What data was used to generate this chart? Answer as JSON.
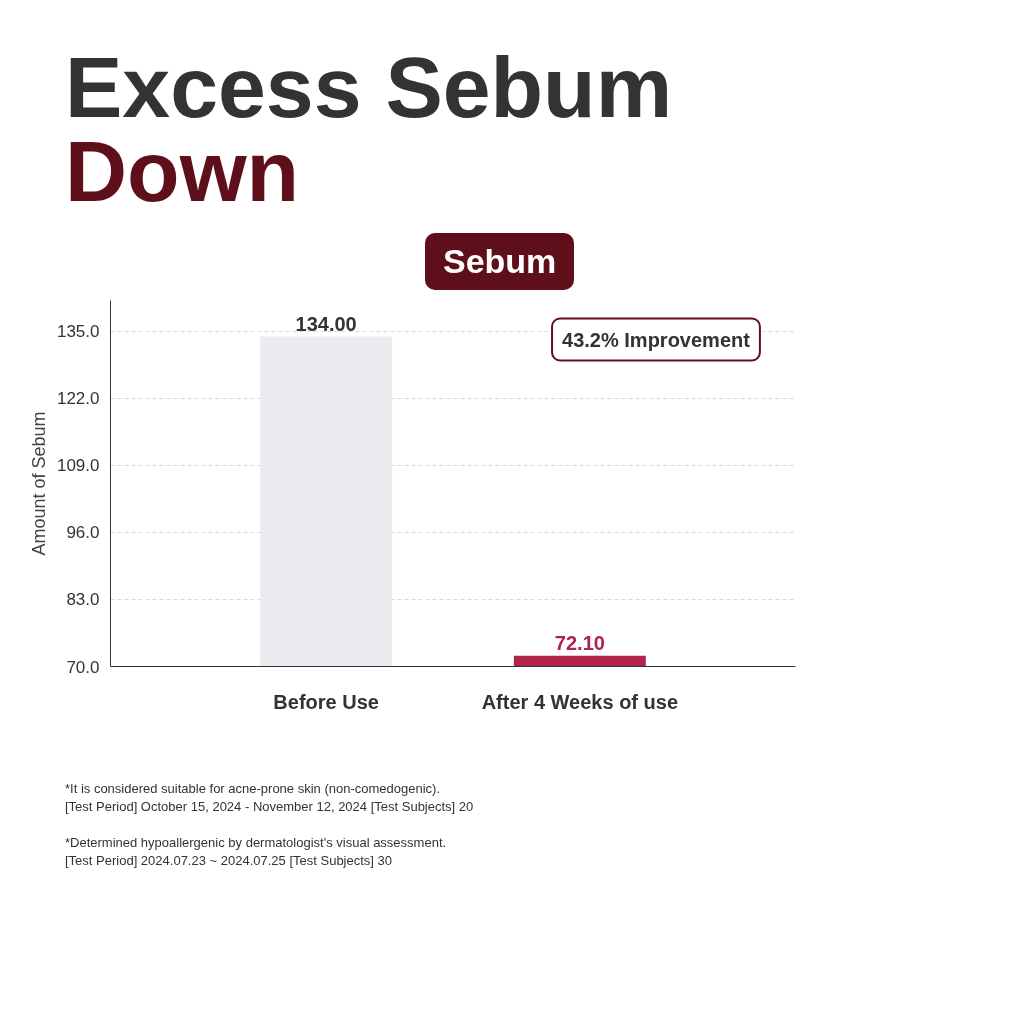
{
  "chart_data": {
    "type": "bar",
    "title": "Excess Sebum Down",
    "subtitle": "Sebum",
    "ylabel": "Amount of Sebum",
    "categories": [
      "Before Use",
      "After 4 Weeks of use"
    ],
    "values": [
      134.0,
      72.1
    ],
    "value_labels": [
      "134.00",
      "72.10"
    ],
    "colors": [
      "#ebebef",
      "#b0234a"
    ],
    "ylim": [
      70,
      141
    ],
    "yticks": [
      {
        "value": 70,
        "label": "70.0"
      },
      {
        "value": 83,
        "label": "83.0"
      },
      {
        "value": 96,
        "label": "96.0"
      },
      {
        "value": 109,
        "label": "109.0"
      },
      {
        "value": 122,
        "label": "122.0"
      },
      {
        "value": 135,
        "label": "135.0"
      }
    ],
    "grid": "y",
    "annotations": [
      "43.2% Improvement",
      "*It is considered suitable for acne-prone skin (non-comedogenic).",
      "[Test Period] October 15, 2024 - November 12, 2024 [Test Subjects] 20",
      "*Determined hypoallergenic by dermatologist's visual assessment.",
      "[Test Period] 2024.07.23 ~ 2024.07.25 [Test Subjects] 30"
    ]
  }
}
